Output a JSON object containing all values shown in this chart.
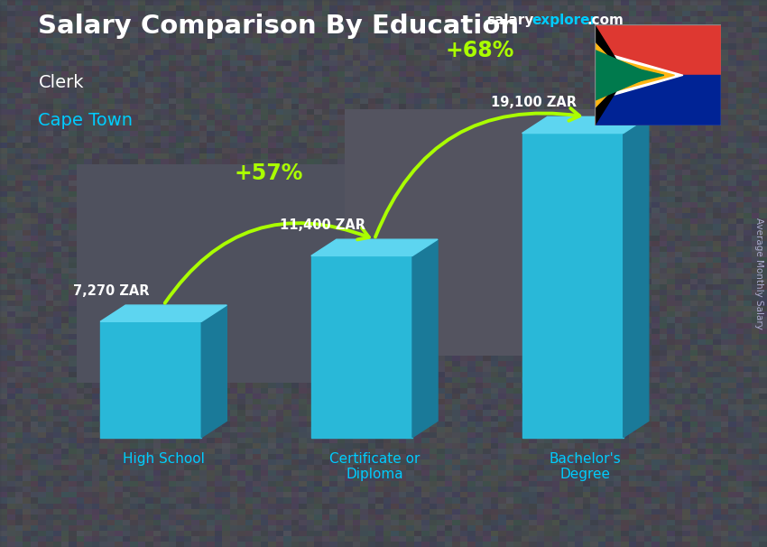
{
  "title": "Salary Comparison By Education",
  "subtitle1": "Clerk",
  "subtitle2": "Cape Town",
  "ylabel": "Average Monthly Salary",
  "categories": [
    "High School",
    "Certificate or\nDiploma",
    "Bachelor's\nDegree"
  ],
  "values": [
    7270,
    11400,
    19100
  ],
  "value_labels": [
    "7,270 ZAR",
    "11,400 ZAR",
    "19,100 ZAR"
  ],
  "pct_labels": [
    "+57%",
    "+68%"
  ],
  "bar_face_color": "#29b8d8",
  "bar_side_color": "#1a7a99",
  "bar_top_color": "#5dd5f0",
  "arrow_color": "#aaff00",
  "title_color": "#ffffff",
  "subtitle1_color": "#ffffff",
  "subtitle2_color": "#00ccff",
  "label_color": "#ffffff",
  "pct_color": "#aaff00",
  "category_color": "#00ccff",
  "bg_color": "#4a5060",
  "brand_color_salary": "#ffffff",
  "brand_color_explorer": "#00ccff",
  "brand_color_com": "#ffffff",
  "ylim_max": 23000,
  "flag_colors": {
    "red": "#de3831",
    "blue": "#002395",
    "green": "#007a4d",
    "black": "#000000",
    "white": "#ffffff",
    "gold": "#ffb612"
  }
}
